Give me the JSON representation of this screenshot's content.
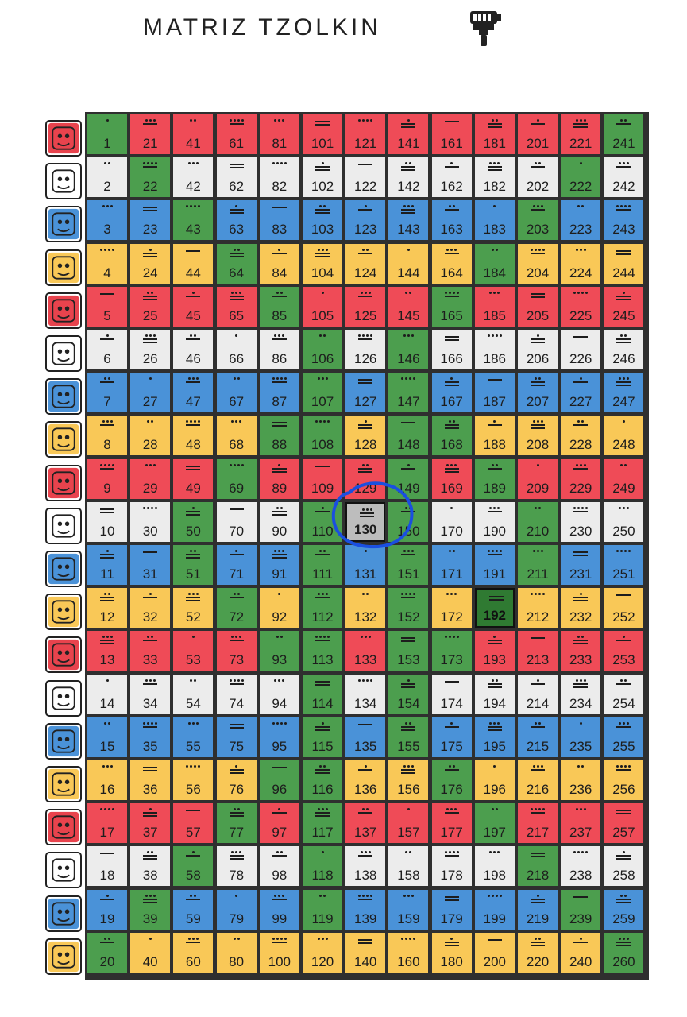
{
  "title": "MATRIZ TZOLKIN",
  "toolbar": {
    "paint_icon": "paint-roller-icon"
  },
  "colors": {
    "red": "#ef4b57",
    "white": "#ececec",
    "blue": "#4a92d8",
    "yellow": "#f9c857",
    "green": "#4c9e4e",
    "selected": "#bdbdbd",
    "highlight": "#2f7a32",
    "annotation": "#1a4fe0"
  },
  "glyphs": [
    "imix-glyph-icon",
    "ik-glyph-icon",
    "akbal-glyph-icon",
    "kan-glyph-icon",
    "chikchan-glyph-icon",
    "kimi-glyph-icon",
    "manik-glyph-icon",
    "lamat-glyph-icon",
    "muluk-glyph-icon",
    "ok-glyph-icon",
    "chuwen-glyph-icon",
    "eb-glyph-icon",
    "ben-glyph-icon",
    "ix-glyph-icon",
    "men-glyph-icon",
    "kib-glyph-icon",
    "kaban-glyph-icon",
    "etznab-glyph-icon",
    "kawak-glyph-icon",
    "ajaw-glyph-icon"
  ],
  "green_kins": [
    1,
    22,
    43,
    64,
    85,
    106,
    107,
    108,
    88,
    69,
    50,
    51,
    72,
    93,
    114,
    115,
    96,
    77,
    58,
    39,
    20,
    241,
    222,
    203,
    184,
    165,
    146,
    147,
    148,
    168,
    189,
    210,
    211,
    192,
    173,
    154,
    155,
    176,
    197,
    218,
    239,
    260,
    110,
    111,
    112,
    113,
    149,
    150,
    151,
    152,
    153,
    116,
    117,
    118,
    119
  ],
  "selected_kin": 130,
  "highlighted_kin": 192
}
